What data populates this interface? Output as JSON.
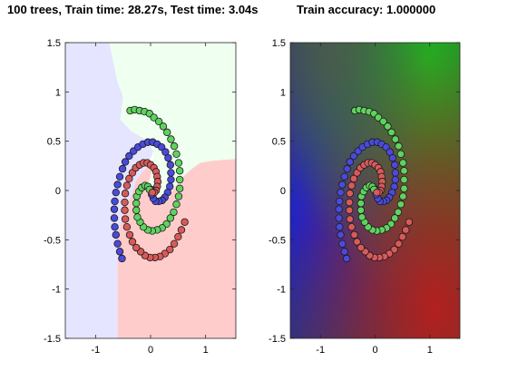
{
  "figure": {
    "title_left": "100 trees, Train time: 28.27s, Test time: 3.04s",
    "title_right": "Train accuracy: 1.000000"
  },
  "colors": {
    "class_blue": "#4a4adb",
    "class_green": "#5fd35f",
    "class_red": "#d95a5a",
    "region_blue": "#e5e5ff",
    "region_green": "#effff0",
    "region_red": "#ffcccc"
  },
  "chart_data": [
    {
      "type": "scatter",
      "panel": "decision-regions",
      "xlim": [
        -1.55,
        1.55
      ],
      "ylim": [
        -1.5,
        1.5
      ],
      "xticks": [
        -1,
        0,
        1
      ],
      "yticks": [
        -1.5,
        -1,
        -0.5,
        0,
        0.5,
        1,
        1.5
      ],
      "xtick_labels": [
        "-1",
        "0",
        "1"
      ],
      "ytick_labels": [
        "-1.5",
        "-1",
        "-0.5",
        "0",
        "0.5",
        "1",
        "1.5"
      ],
      "grid": false,
      "legend": "none",
      "regions": [
        {
          "class": "blue",
          "polygon": [
            [
              -1.55,
              1.5
            ],
            [
              -0.75,
              1.5
            ],
            [
              -0.6,
              1.1
            ],
            [
              -0.5,
              0.95
            ],
            [
              -0.55,
              0.72
            ],
            [
              -0.35,
              0.6
            ],
            [
              -0.1,
              0.52
            ],
            [
              0.05,
              0.4
            ],
            [
              -0.05,
              0.25
            ],
            [
              -0.25,
              0.12
            ],
            [
              -0.35,
              -0.05
            ],
            [
              -0.5,
              -0.25
            ],
            [
              -0.6,
              -0.45
            ],
            [
              -0.6,
              -1.5
            ],
            [
              -1.55,
              -1.5
            ]
          ]
        },
        {
          "class": "green",
          "polygon": [
            [
              -0.75,
              1.5
            ],
            [
              1.55,
              1.5
            ],
            [
              1.55,
              0.32
            ],
            [
              1.1,
              0.3
            ],
            [
              0.9,
              0.28
            ],
            [
              0.75,
              0.22
            ],
            [
              0.55,
              0.12
            ],
            [
              0.4,
              0.0
            ],
            [
              0.3,
              -0.1
            ],
            [
              0.18,
              -0.12
            ],
            [
              0.05,
              -0.05
            ],
            [
              -0.05,
              0.05
            ],
            [
              0.05,
              0.25
            ],
            [
              0.05,
              0.4
            ],
            [
              -0.1,
              0.52
            ],
            [
              -0.35,
              0.6
            ],
            [
              -0.55,
              0.72
            ],
            [
              -0.5,
              0.95
            ],
            [
              -0.6,
              1.1
            ]
          ]
        },
        {
          "class": "red",
          "polygon": [
            [
              -0.6,
              -1.5
            ],
            [
              1.55,
              -1.5
            ],
            [
              1.55,
              0.32
            ],
            [
              1.1,
              0.3
            ],
            [
              0.9,
              0.28
            ],
            [
              0.75,
              0.22
            ],
            [
              0.55,
              0.12
            ],
            [
              0.4,
              0.0
            ],
            [
              0.3,
              -0.1
            ],
            [
              0.18,
              -0.12
            ],
            [
              0.05,
              -0.05
            ],
            [
              -0.05,
              0.05
            ],
            [
              0.05,
              0.25
            ],
            [
              -0.05,
              0.25
            ],
            [
              -0.25,
              0.12
            ],
            [
              -0.35,
              -0.05
            ],
            [
              -0.5,
              -0.25
            ],
            [
              -0.6,
              -0.45
            ]
          ]
        }
      ],
      "series": [
        {
          "class": "blue",
          "points": [
            [
              -0.52,
              -0.69
            ],
            [
              -0.56,
              -0.62
            ],
            [
              -0.6,
              -0.54
            ],
            [
              -0.63,
              -0.45
            ],
            [
              -0.65,
              -0.37
            ],
            [
              -0.66,
              -0.28
            ],
            [
              -0.66,
              -0.19
            ],
            [
              -0.65,
              -0.11
            ],
            [
              -0.63,
              -0.02
            ],
            [
              -0.6,
              0.06
            ],
            [
              -0.56,
              0.14
            ],
            [
              -0.51,
              0.22
            ],
            [
              -0.46,
              0.29
            ],
            [
              -0.39,
              0.35
            ],
            [
              -0.31,
              0.4
            ],
            [
              -0.23,
              0.44
            ],
            [
              -0.14,
              0.47
            ],
            [
              -0.05,
              0.49
            ],
            [
              0.04,
              0.49
            ],
            [
              0.12,
              0.47
            ],
            [
              0.2,
              0.44
            ],
            [
              0.27,
              0.39
            ],
            [
              0.32,
              0.33
            ],
            [
              0.36,
              0.26
            ],
            [
              0.37,
              0.18
            ],
            [
              0.37,
              0.11
            ],
            [
              0.35,
              0.04
            ],
            [
              0.31,
              -0.02
            ],
            [
              0.26,
              -0.07
            ],
            [
              0.21,
              -0.1
            ],
            [
              0.15,
              -0.11
            ],
            [
              0.09,
              -0.11
            ],
            [
              0.05,
              -0.08
            ],
            [
              0.02,
              -0.04
            ],
            [
              0.01,
              0.01
            ]
          ]
        },
        {
          "class": "green",
          "points": [
            [
              -0.37,
              0.81
            ],
            [
              -0.29,
              0.82
            ],
            [
              -0.2,
              0.81
            ],
            [
              -0.11,
              0.8
            ],
            [
              -0.02,
              0.78
            ],
            [
              0.06,
              0.74
            ],
            [
              0.15,
              0.7
            ],
            [
              0.23,
              0.65
            ],
            [
              0.3,
              0.59
            ],
            [
              0.37,
              0.52
            ],
            [
              0.43,
              0.45
            ],
            [
              0.47,
              0.37
            ],
            [
              0.51,
              0.28
            ],
            [
              0.53,
              0.2
            ],
            [
              0.53,
              0.11
            ],
            [
              0.53,
              0.02
            ],
            [
              0.51,
              -0.06
            ],
            [
              0.47,
              -0.14
            ],
            [
              0.42,
              -0.22
            ],
            [
              0.36,
              -0.28
            ],
            [
              0.29,
              -0.34
            ],
            [
              0.21,
              -0.38
            ],
            [
              0.12,
              -0.4
            ],
            [
              0.03,
              -0.41
            ],
            [
              -0.05,
              -0.4
            ],
            [
              -0.13,
              -0.37
            ],
            [
              -0.19,
              -0.32
            ],
            [
              -0.24,
              -0.27
            ],
            [
              -0.26,
              -0.2
            ],
            [
              -0.26,
              -0.13
            ],
            [
              -0.25,
              -0.06
            ],
            [
              -0.21,
              -0.01
            ],
            [
              -0.16,
              0.03
            ],
            [
              -0.1,
              0.05
            ],
            [
              -0.05,
              0.04
            ],
            [
              -0.02,
              0.01
            ]
          ]
        },
        {
          "class": "red",
          "points": [
            [
              0.62,
              -0.32
            ],
            [
              0.56,
              -0.4
            ],
            [
              0.5,
              -0.47
            ],
            [
              0.43,
              -0.54
            ],
            [
              0.35,
              -0.6
            ],
            [
              0.26,
              -0.64
            ],
            [
              0.17,
              -0.67
            ],
            [
              0.08,
              -0.68
            ],
            [
              -0.01,
              -0.68
            ],
            [
              -0.1,
              -0.66
            ],
            [
              -0.18,
              -0.62
            ],
            [
              -0.26,
              -0.58
            ],
            [
              -0.33,
              -0.52
            ],
            [
              -0.38,
              -0.45
            ],
            [
              -0.43,
              -0.37
            ],
            [
              -0.46,
              -0.29
            ],
            [
              -0.47,
              -0.2
            ],
            [
              -0.47,
              -0.12
            ],
            [
              -0.46,
              -0.03
            ],
            [
              -0.43,
              0.05
            ],
            [
              -0.39,
              0.12
            ],
            [
              -0.33,
              0.18
            ],
            [
              -0.27,
              0.23
            ],
            [
              -0.2,
              0.26
            ],
            [
              -0.13,
              0.28
            ],
            [
              -0.06,
              0.28
            ],
            [
              0.0,
              0.26
            ],
            [
              0.06,
              0.23
            ],
            [
              0.1,
              0.19
            ],
            [
              0.12,
              0.14
            ],
            [
              0.13,
              0.09
            ],
            [
              0.12,
              0.04
            ],
            [
              0.1,
              0.0
            ],
            [
              0.07,
              -0.02
            ],
            [
              0.03,
              -0.02
            ]
          ]
        }
      ]
    },
    {
      "type": "scatter",
      "panel": "class-probability-map",
      "xlim": [
        -1.55,
        1.55
      ],
      "ylim": [
        -1.5,
        1.5
      ],
      "xticks": [
        -1,
        0,
        1
      ],
      "yticks": [
        -1.5,
        -1,
        -0.5,
        0,
        0.5,
        1,
        1.5
      ],
      "xtick_labels": [
        "-1",
        "0",
        "1"
      ],
      "ytick_labels": [
        "-1.5",
        "-1",
        "-0.5",
        "0",
        "0.5",
        "1",
        "1.5"
      ],
      "grid": false,
      "legend": "none",
      "background": "blended class probabilities (blue upper-left and left, green top and upper-right, red lower-right)",
      "series_same_as_panel": 0
    }
  ]
}
